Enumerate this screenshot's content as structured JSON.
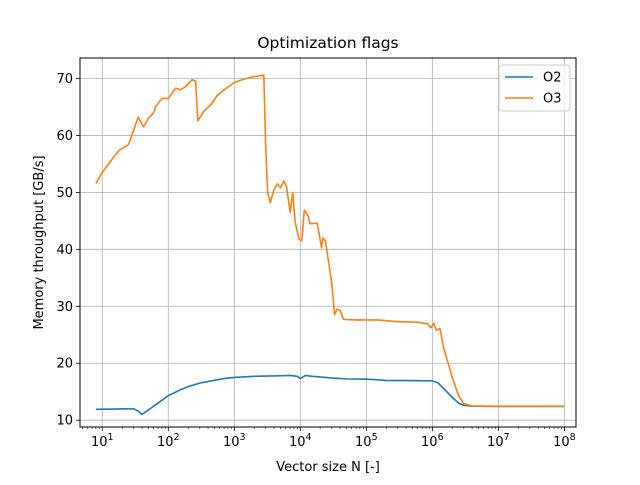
{
  "chart_data": {
    "type": "line",
    "title": "Optimization flags",
    "xlabel": "Vector size N [-]",
    "ylabel": "Memory throughput [GB/s]",
    "xscale": "log",
    "xlim": [
      4.6,
      150000000
    ],
    "ylim": [
      8.8,
      73.6
    ],
    "grid": true,
    "legend_position": "upper right",
    "x_tick_labels": [
      {
        "base": "10",
        "exp": "1",
        "value": 10
      },
      {
        "base": "10",
        "exp": "2",
        "value": 100
      },
      {
        "base": "10",
        "exp": "3",
        "value": 1000
      },
      {
        "base": "10",
        "exp": "4",
        "value": 10000
      },
      {
        "base": "10",
        "exp": "5",
        "value": 100000
      },
      {
        "base": "10",
        "exp": "6",
        "value": 1000000
      },
      {
        "base": "10",
        "exp": "7",
        "value": 10000000
      },
      {
        "base": "10",
        "exp": "8",
        "value": 100000000
      }
    ],
    "y_ticks": [
      10,
      20,
      30,
      40,
      50,
      60,
      70
    ],
    "series": [
      {
        "name": "O2",
        "color": "#1f77b4",
        "points": [
          [
            8,
            11.9
          ],
          [
            15,
            11.95
          ],
          [
            30,
            12.0
          ],
          [
            35,
            11.6
          ],
          [
            40,
            11.0
          ],
          [
            50,
            11.8
          ],
          [
            70,
            13.0
          ],
          [
            100,
            14.3
          ],
          [
            150,
            15.3
          ],
          [
            200,
            15.9
          ],
          [
            300,
            16.5
          ],
          [
            500,
            17.0
          ],
          [
            700,
            17.3
          ],
          [
            1000,
            17.5
          ],
          [
            2000,
            17.7
          ],
          [
            3000,
            17.75
          ],
          [
            5000,
            17.8
          ],
          [
            7000,
            17.85
          ],
          [
            9000,
            17.7
          ],
          [
            10000,
            17.3
          ],
          [
            12000,
            17.85
          ],
          [
            15000,
            17.7
          ],
          [
            20000,
            17.6
          ],
          [
            30000,
            17.4
          ],
          [
            50000,
            17.25
          ],
          [
            100000,
            17.2
          ],
          [
            150000,
            17.1
          ],
          [
            200000,
            16.95
          ],
          [
            500000,
            16.95
          ],
          [
            1000000,
            16.9
          ],
          [
            1200000,
            16.6
          ],
          [
            1500000,
            15.5
          ],
          [
            2000000,
            14.0
          ],
          [
            2500000,
            13.0
          ],
          [
            3000000,
            12.6
          ],
          [
            4000000,
            12.45
          ],
          [
            10000000,
            12.4
          ],
          [
            100000000,
            12.4
          ]
        ]
      },
      {
        "name": "O3",
        "color": "#ff7f0e",
        "points": [
          [
            8,
            51.6
          ],
          [
            10,
            53.5
          ],
          [
            14,
            55.8
          ],
          [
            18,
            57.4
          ],
          [
            25,
            58.4
          ],
          [
            30,
            61.0
          ],
          [
            35,
            63.2
          ],
          [
            42,
            61.5
          ],
          [
            50,
            63.0
          ],
          [
            60,
            64.0
          ],
          [
            65,
            65.1
          ],
          [
            80,
            66.5
          ],
          [
            100,
            66.5
          ],
          [
            130,
            68.3
          ],
          [
            150,
            68.0
          ],
          [
            180,
            68.5
          ],
          [
            230,
            69.8
          ],
          [
            260,
            69.5
          ],
          [
            280,
            62.6
          ],
          [
            350,
            64.3
          ],
          [
            450,
            65.5
          ],
          [
            550,
            67.0
          ],
          [
            700,
            68.0
          ],
          [
            1000,
            69.3
          ],
          [
            1500,
            70.0
          ],
          [
            2000,
            70.3
          ],
          [
            2800,
            70.6
          ],
          [
            3000,
            57.5
          ],
          [
            3200,
            50.0
          ],
          [
            3500,
            48.2
          ],
          [
            4000,
            50.5
          ],
          [
            4500,
            51.5
          ],
          [
            5000,
            50.8
          ],
          [
            5600,
            52.0
          ],
          [
            6200,
            51.0
          ],
          [
            7000,
            46.5
          ],
          [
            7700,
            50.0
          ],
          [
            8300,
            45.0
          ],
          [
            9500,
            41.8
          ],
          [
            10500,
            41.5
          ],
          [
            11500,
            46.9
          ],
          [
            13000,
            46.0
          ],
          [
            14000,
            44.5
          ],
          [
            18000,
            44.6
          ],
          [
            21000,
            40.3
          ],
          [
            22000,
            42.0
          ],
          [
            24000,
            41.5
          ],
          [
            27000,
            37.5
          ],
          [
            30000,
            34.0
          ],
          [
            33000,
            28.5
          ],
          [
            36000,
            29.5
          ],
          [
            40000,
            29.3
          ],
          [
            45000,
            27.7
          ],
          [
            70000,
            27.6
          ],
          [
            150000,
            27.6
          ],
          [
            300000,
            27.3
          ],
          [
            600000,
            27.2
          ],
          [
            850000,
            26.9
          ],
          [
            950000,
            26.2
          ],
          [
            1050000,
            27.0
          ],
          [
            1150000,
            25.8
          ],
          [
            1300000,
            26.1
          ],
          [
            1500000,
            22.5
          ],
          [
            2000000,
            17.5
          ],
          [
            2500000,
            14.3
          ],
          [
            3000000,
            12.9
          ],
          [
            4000000,
            12.5
          ],
          [
            10000000,
            12.45
          ],
          [
            100000000,
            12.45
          ]
        ]
      }
    ]
  }
}
